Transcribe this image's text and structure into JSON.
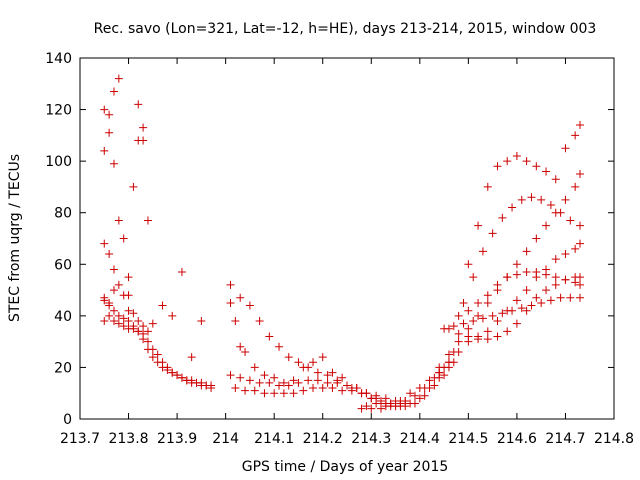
{
  "chart_data": {
    "type": "scatter",
    "title": "Rec. savo (Lon=321, Lat=-12, h=HE), days 213-214, 2015, window 003",
    "xlabel": "GPS time / Days of year 2015",
    "ylabel": "STEC from uqrg / TECUs",
    "xlim": [
      213.7,
      214.8
    ],
    "ylim": [
      0,
      140
    ],
    "xticks": [
      "213.7",
      "213.8",
      "213.9",
      "214",
      "214.1",
      "214.2",
      "214.3",
      "214.4",
      "214.5",
      "214.6",
      "214.7",
      "214.8"
    ],
    "yticks": [
      "0",
      "20",
      "40",
      "60",
      "80",
      "100",
      "120",
      "140"
    ],
    "grid": false,
    "legend": false,
    "marker": "+",
    "color": "#cc0000",
    "x": [
      213.75,
      213.75,
      213.75,
      213.76,
      213.76,
      213.76,
      213.77,
      213.77,
      213.77,
      213.78,
      213.78,
      213.79,
      213.8,
      213.8,
      213.81,
      213.82,
      213.82,
      213.83,
      213.83,
      213.84,
      213.85,
      213.75,
      213.76,
      213.77,
      213.78,
      213.79,
      213.8,
      213.81,
      213.82,
      213.83,
      213.84,
      213.75,
      213.76,
      213.77,
      213.78,
      213.79,
      213.8,
      213.81,
      213.82,
      213.83,
      213.84,
      213.85,
      213.86,
      213.87,
      213.88,
      213.89,
      213.9,
      213.91,
      213.92,
      213.93,
      213.94,
      213.95,
      213.96,
      213.97,
      213.75,
      213.76,
      213.77,
      213.78,
      213.79,
      213.8,
      213.81,
      213.82,
      213.83,
      213.84,
      213.85,
      213.86,
      213.87,
      213.88,
      213.89,
      213.9,
      213.91,
      213.92,
      213.93,
      213.94,
      213.95,
      213.96,
      213.97,
      213.87,
      213.89,
      213.91,
      213.93,
      213.95,
      214.01,
      214.02,
      214.03,
      214.04,
      214.06,
      214.08,
      214.1,
      214.12,
      214.14,
      214.16,
      214.18,
      214.2,
      214.22,
      214.24,
      214.26,
      214.28,
      214.3,
      214.32,
      214.34,
      214.36,
      214.38,
      214.4,
      214.42,
      214.44,
      214.46,
      214.01,
      214.03,
      214.05,
      214.07,
      214.09,
      214.11,
      214.13,
      214.15,
      214.17,
      214.19,
      214.21,
      214.23,
      214.25,
      214.27,
      214.29,
      214.31,
      214.33,
      214.35,
      214.37,
      214.39,
      214.41,
      214.43,
      214.45,
      214.47,
      214.01,
      214.03,
      214.05,
      214.07,
      214.09,
      214.11,
      214.13,
      214.15,
      214.17,
      214.19,
      214.21,
      214.23,
      214.25,
      214.27,
      214.29,
      214.31,
      214.33,
      214.35,
      214.37,
      214.39,
      214.41,
      214.43,
      214.45,
      214.47,
      214.02,
      214.04,
      214.06,
      214.08,
      214.1,
      214.12,
      214.14,
      214.16,
      214.18,
      214.2,
      214.22,
      214.24,
      214.26,
      214.28,
      214.3,
      214.32,
      214.34,
      214.36,
      214.38,
      214.4,
      214.42,
      214.44,
      214.46,
      214.28,
      214.29,
      214.3,
      214.31,
      214.32,
      214.33,
      214.34,
      214.35,
      214.36,
      214.37,
      214.44,
      214.46,
      214.48,
      214.5,
      214.52,
      214.54,
      214.56,
      214.58,
      214.6,
      214.62,
      214.64,
      214.66,
      214.68,
      214.7,
      214.72,
      214.73,
      214.44,
      214.46,
      214.48,
      214.5,
      214.52,
      214.54,
      214.56,
      214.58,
      214.6,
      214.62,
      214.64,
      214.66,
      214.68,
      214.7,
      214.72,
      214.73,
      214.46,
      214.48,
      214.5,
      214.52,
      214.54,
      214.56,
      214.58,
      214.6,
      214.62,
      214.64,
      214.66,
      214.68,
      214.7,
      214.72,
      214.73,
      214.48,
      214.5,
      214.52,
      214.54,
      214.56,
      214.58,
      214.6,
      214.62,
      214.64,
      214.66,
      214.68,
      214.7,
      214.72,
      214.73,
      214.49,
      214.51,
      214.53,
      214.55,
      214.57,
      214.59,
      214.61,
      214.63,
      214.65,
      214.67,
      214.69,
      214.71,
      214.73,
      214.5,
      214.52,
      214.54,
      214.56,
      214.58,
      214.6,
      214.62,
      214.64,
      214.66,
      214.68,
      214.7,
      214.72,
      214.73,
      214.45,
      214.47,
      214.49,
      214.51,
      214.53,
      214.55,
      214.57,
      214.59,
      214.61,
      214.63,
      214.65,
      214.67,
      214.69,
      214.71,
      214.73
    ],
    "y": [
      120,
      104,
      68,
      118,
      111,
      64,
      127,
      99,
      58,
      132,
      77,
      70,
      55,
      48,
      90,
      122,
      108,
      108,
      113,
      77,
      37,
      46,
      44,
      50,
      52,
      48,
      42,
      41,
      38,
      36,
      34,
      47,
      45,
      42,
      40,
      39,
      38,
      36,
      34,
      31,
      27,
      24,
      22,
      20,
      19,
      18,
      17,
      16,
      15,
      15,
      14,
      14,
      13,
      13,
      38,
      40,
      38,
      37,
      36,
      35,
      35,
      34,
      33,
      30,
      27,
      25,
      22,
      20,
      18,
      17,
      16,
      15,
      14,
      14,
      13,
      13,
      12,
      44,
      40,
      57,
      24,
      38,
      52,
      38,
      28,
      26,
      20,
      17,
      16,
      14,
      15,
      20,
      22,
      24,
      18,
      16,
      12,
      10,
      8,
      7,
      6,
      7,
      10,
      12,
      15,
      18,
      22,
      45,
      47,
      44,
      38,
      32,
      28,
      24,
      22,
      20,
      18,
      17,
      15,
      13,
      12,
      10,
      9,
      8,
      7,
      7,
      9,
      12,
      16,
      20,
      26,
      17,
      16,
      15,
      14,
      14,
      13,
      13,
      14,
      15,
      15,
      14,
      14,
      13,
      12,
      10,
      8,
      6,
      5,
      5,
      6,
      9,
      13,
      17,
      22,
      12,
      11,
      11,
      10,
      10,
      10,
      10,
      11,
      12,
      12,
      12,
      11,
      11,
      10,
      8,
      6,
      5,
      5,
      6,
      8,
      12,
      16,
      20,
      4,
      5,
      4,
      6,
      4,
      5,
      6,
      5,
      6,
      7,
      20,
      25,
      30,
      35,
      40,
      45,
      50,
      55,
      60,
      65,
      70,
      75,
      80,
      85,
      90,
      95,
      18,
      22,
      26,
      30,
      32,
      34,
      38,
      42,
      46,
      50,
      55,
      58,
      62,
      64,
      66,
      68,
      35,
      33,
      32,
      31,
      31,
      32,
      34,
      37,
      42,
      47,
      50,
      52,
      54,
      55,
      55,
      40,
      42,
      45,
      48,
      52,
      55,
      56,
      57,
      57,
      56,
      55,
      54,
      53,
      52,
      45,
      55,
      65,
      72,
      78,
      82,
      85,
      86,
      85,
      83,
      80,
      77,
      75,
      60,
      75,
      90,
      98,
      100,
      102,
      100,
      98,
      96,
      93,
      105,
      110,
      114,
      35,
      36,
      37,
      38,
      39,
      40,
      41,
      42,
      43,
      44,
      45,
      46,
      47,
      47,
      47
    ]
  }
}
